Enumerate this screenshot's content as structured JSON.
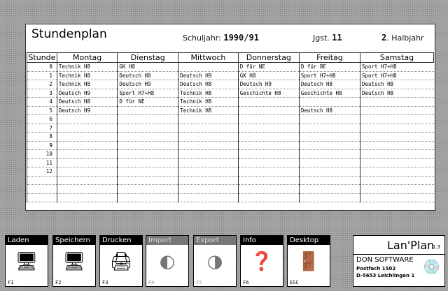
{
  "header": {
    "title": "Stundenplan",
    "schuljahr_label": "Schuljahr:",
    "schuljahr": "1990/91",
    "jgst_label": "Jgst.",
    "jgst": "11",
    "halbjahr_num": "2",
    "halbjahr_label": ". Halbjahr"
  },
  "table": {
    "columns": [
      "Stunde",
      "Montag",
      "Dienstag",
      "Mittwoch",
      "Donnerstag",
      "Freitag",
      "Samstag"
    ],
    "rows": [
      [
        "0",
        "Technik H8",
        "GK H8",
        "",
        "D für NE",
        "D für BE",
        "Sport H7+H8"
      ],
      [
        "1",
        "Technik H8",
        "Deutsch H8",
        "Deutsch H9",
        "GK H8",
        "Sport H7+H8",
        "Sport H7+H8"
      ],
      [
        "2",
        "Technik H8",
        "Deutsch H9",
        "Deutsch H8",
        "Deutsch H9",
        "Deutsch H8",
        "Deutsch H8"
      ],
      [
        "3",
        "Deutsch H9",
        "Sport H7+H8",
        "Technik H8",
        "Geschichte H8",
        "Geschichte H8",
        "Deutsch H8"
      ],
      [
        "4",
        "Deutsch H8",
        "D für NE",
        "Technik H8",
        "",
        "",
        ""
      ],
      [
        "5",
        "Deutsch H9",
        "",
        "Technik H8",
        "",
        "Deutsch H8",
        ""
      ],
      [
        "6",
        "",
        "",
        "",
        "",
        "",
        ""
      ],
      [
        "7",
        "",
        "",
        "",
        "",
        "",
        ""
      ],
      [
        "8",
        "",
        "",
        "",
        "",
        "",
        ""
      ],
      [
        "9",
        "",
        "",
        "",
        "",
        "",
        ""
      ],
      [
        "10",
        "",
        "",
        "",
        "",
        "",
        ""
      ],
      [
        "11",
        "",
        "",
        "",
        "",
        "",
        ""
      ],
      [
        "12",
        "",
        "",
        "",
        "",
        "",
        ""
      ],
      [
        "",
        "",
        "",
        "",
        "",
        "",
        ""
      ],
      [
        "",
        "",
        "",
        "",
        "",
        "",
        ""
      ],
      [
        "",
        "",
        "",
        "",
        "",
        "",
        ""
      ]
    ]
  },
  "toolbar": [
    {
      "label": "Laden",
      "key": "F1",
      "icon": "load-computer-icon",
      "glyph": "🖥",
      "enabled": true
    },
    {
      "label": "Speichern",
      "key": "F2",
      "icon": "save-computer-icon",
      "glyph": "🖥",
      "enabled": true
    },
    {
      "label": "Drucken",
      "key": "F3",
      "icon": "printer-icon",
      "glyph": "🖨",
      "enabled": true
    },
    {
      "label": "Import",
      "key": "F4",
      "icon": "import-icon",
      "glyph": "◐",
      "enabled": false
    },
    {
      "label": "Export",
      "key": "F5",
      "icon": "export-icon",
      "glyph": "◑",
      "enabled": false
    },
    {
      "label": "Info",
      "key": "F6",
      "icon": "info-icon",
      "glyph": "❓",
      "enabled": true
    },
    {
      "label": "Desktop",
      "key": "ESC",
      "icon": "door-icon",
      "glyph": "🚪",
      "enabled": true
    }
  ],
  "logo": {
    "name": "Lan'Plan",
    "version": "1.3",
    "company": "DON SOFTWARE",
    "address1": "Postfach 1502",
    "address2": "D-5653 Leichlingen 1"
  }
}
